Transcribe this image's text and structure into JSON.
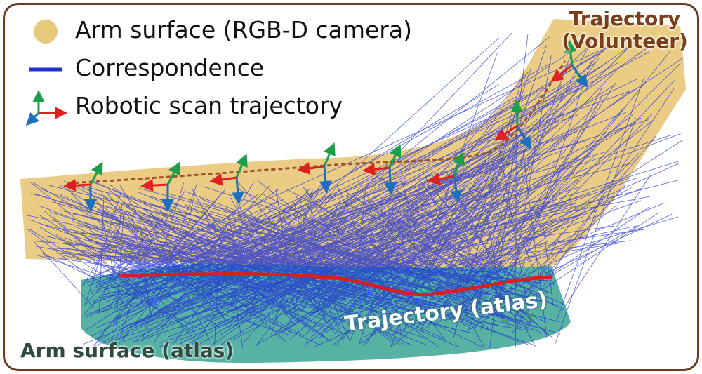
{
  "legend": {
    "surface": "Arm surface (RGB-D camera)",
    "correspondence": "Correspondence",
    "trajectory": "Robotic scan trajectory"
  },
  "labels": {
    "volunteer_trajectory": [
      "Trajectory",
      "(Volunteer)"
    ],
    "atlas_trajectory": "Trajectory (atlas)",
    "atlas_surface": "Arm surface (atlas)"
  },
  "colors": {
    "surface": "#e8c87a",
    "correspondence": "#1f2fd6",
    "atlas_surface": "#4fae9f",
    "atlas_trajectory": "#d42020",
    "volunteer_trajectory": "#a0522d",
    "frame_border": "#6b3a1f",
    "axis_x": "#e02020",
    "axis_y": "#1aa04a",
    "axis_z": "#1f6fc0"
  },
  "icons": [
    "yellow-dot-icon",
    "blue-line-icon",
    "xyz-axes-icon"
  ]
}
